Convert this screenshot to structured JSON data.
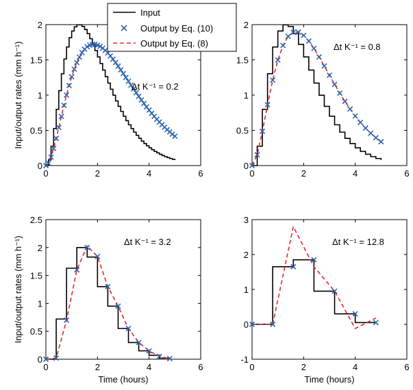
{
  "chart_data": [
    {
      "type": "line",
      "annotation": "Δt K⁻¹ = 0.2",
      "xlabel": "",
      "ylabel": "Input/output rates (mm h⁻¹)",
      "xlim": [
        0,
        6
      ],
      "ylim": [
        0,
        2
      ],
      "xticks": [
        0,
        2,
        4,
        6
      ],
      "yticks": [
        0,
        0.5,
        1,
        1.5,
        2
      ],
      "step": 0.1,
      "input_fn": "gamma",
      "output_fn": "gamma",
      "input_peak": 2.0,
      "input_peak_x": 1.25,
      "output_peak": 1.72,
      "output_peak_x": 1.85,
      "end_x": 5.0,
      "marker_step": 0.1
    },
    {
      "type": "line",
      "annotation": "Δt K⁻¹ = 0.8",
      "xlabel": "",
      "ylabel": "",
      "xlim": [
        0,
        6
      ],
      "ylim": [
        0,
        2
      ],
      "xticks": [
        0,
        2,
        4,
        6
      ],
      "yticks": [
        0,
        0.5,
        1,
        1.5,
        2
      ],
      "step": 0.2,
      "input_fn": "gamma",
      "output_fn": "gamma",
      "input_peak": 2.0,
      "input_peak_x": 1.25,
      "output_peak": 1.9,
      "output_peak_x": 1.7,
      "end_x": 5.0,
      "marker_step": 0.2
    },
    {
      "type": "line",
      "annotation": "Δt K⁻¹ = 3.2",
      "xlabel": "Time (hours)",
      "ylabel": "Input/output rates (mm h⁻¹)",
      "xlim": [
        0,
        6
      ],
      "ylim": [
        0,
        2.5
      ],
      "xticks": [
        0,
        2,
        4,
        6
      ],
      "yticks": [
        0,
        0.5,
        1,
        1.5,
        2,
        2.5
      ],
      "input": {
        "x": [
          0,
          0.4,
          0.8,
          1.2,
          1.6,
          2.0,
          2.4,
          2.8,
          3.2,
          3.6,
          4.0,
          4.4,
          4.8
        ],
        "y": [
          0,
          0.72,
          1.63,
          2.0,
          1.83,
          1.3,
          0.95,
          0.55,
          0.3,
          0.15,
          0.07,
          0.02,
          0.0
        ]
      },
      "output_x": [
        0,
        0.4,
        0.8,
        1.2,
        1.6,
        2.0,
        2.4,
        2.8,
        3.2,
        3.6,
        4.0,
        4.4,
        4.8
      ],
      "output_eq10": [
        0,
        0.02,
        0.7,
        1.6,
        2.0,
        1.84,
        1.3,
        0.95,
        0.55,
        0.3,
        0.15,
        0.05,
        0.01
      ],
      "output_eq8": [
        0,
        0.02,
        0.7,
        1.6,
        2.03,
        1.84,
        1.3,
        0.95,
        0.55,
        0.3,
        0.15,
        0.05,
        0.01
      ]
    },
    {
      "type": "line",
      "annotation": "Δt K⁻¹ = 12.8",
      "xlabel": "Time (hours)",
      "ylabel": "",
      "xlim": [
        0,
        6
      ],
      "ylim": [
        -1,
        3
      ],
      "xticks": [
        0,
        2,
        4,
        6
      ],
      "yticks": [
        -1,
        0,
        1,
        2,
        3
      ],
      "input": {
        "x": [
          0,
          0.8,
          1.6,
          2.4,
          3.2,
          4.0,
          4.8
        ],
        "y": [
          0,
          1.65,
          1.85,
          0.95,
          0.3,
          0.05,
          0.05
        ]
      },
      "output_x": [
        0,
        0.8,
        1.6,
        2.4,
        3.2,
        4.0,
        4.8
      ],
      "output_eq10": [
        0,
        0,
        1.65,
        1.85,
        0.95,
        0.3,
        0.05
      ],
      "output_eq8": [
        0,
        0,
        2.8,
        1.65,
        0.95,
        -0.12,
        0.18
      ]
    }
  ],
  "legend": {
    "entries": [
      "Input",
      "Output by Eq. (10)",
      "Output by Eq. (8)"
    ]
  },
  "colors": {
    "input": "#000000",
    "eq10": "#2b63b0",
    "eq8": "#e8242a"
  }
}
